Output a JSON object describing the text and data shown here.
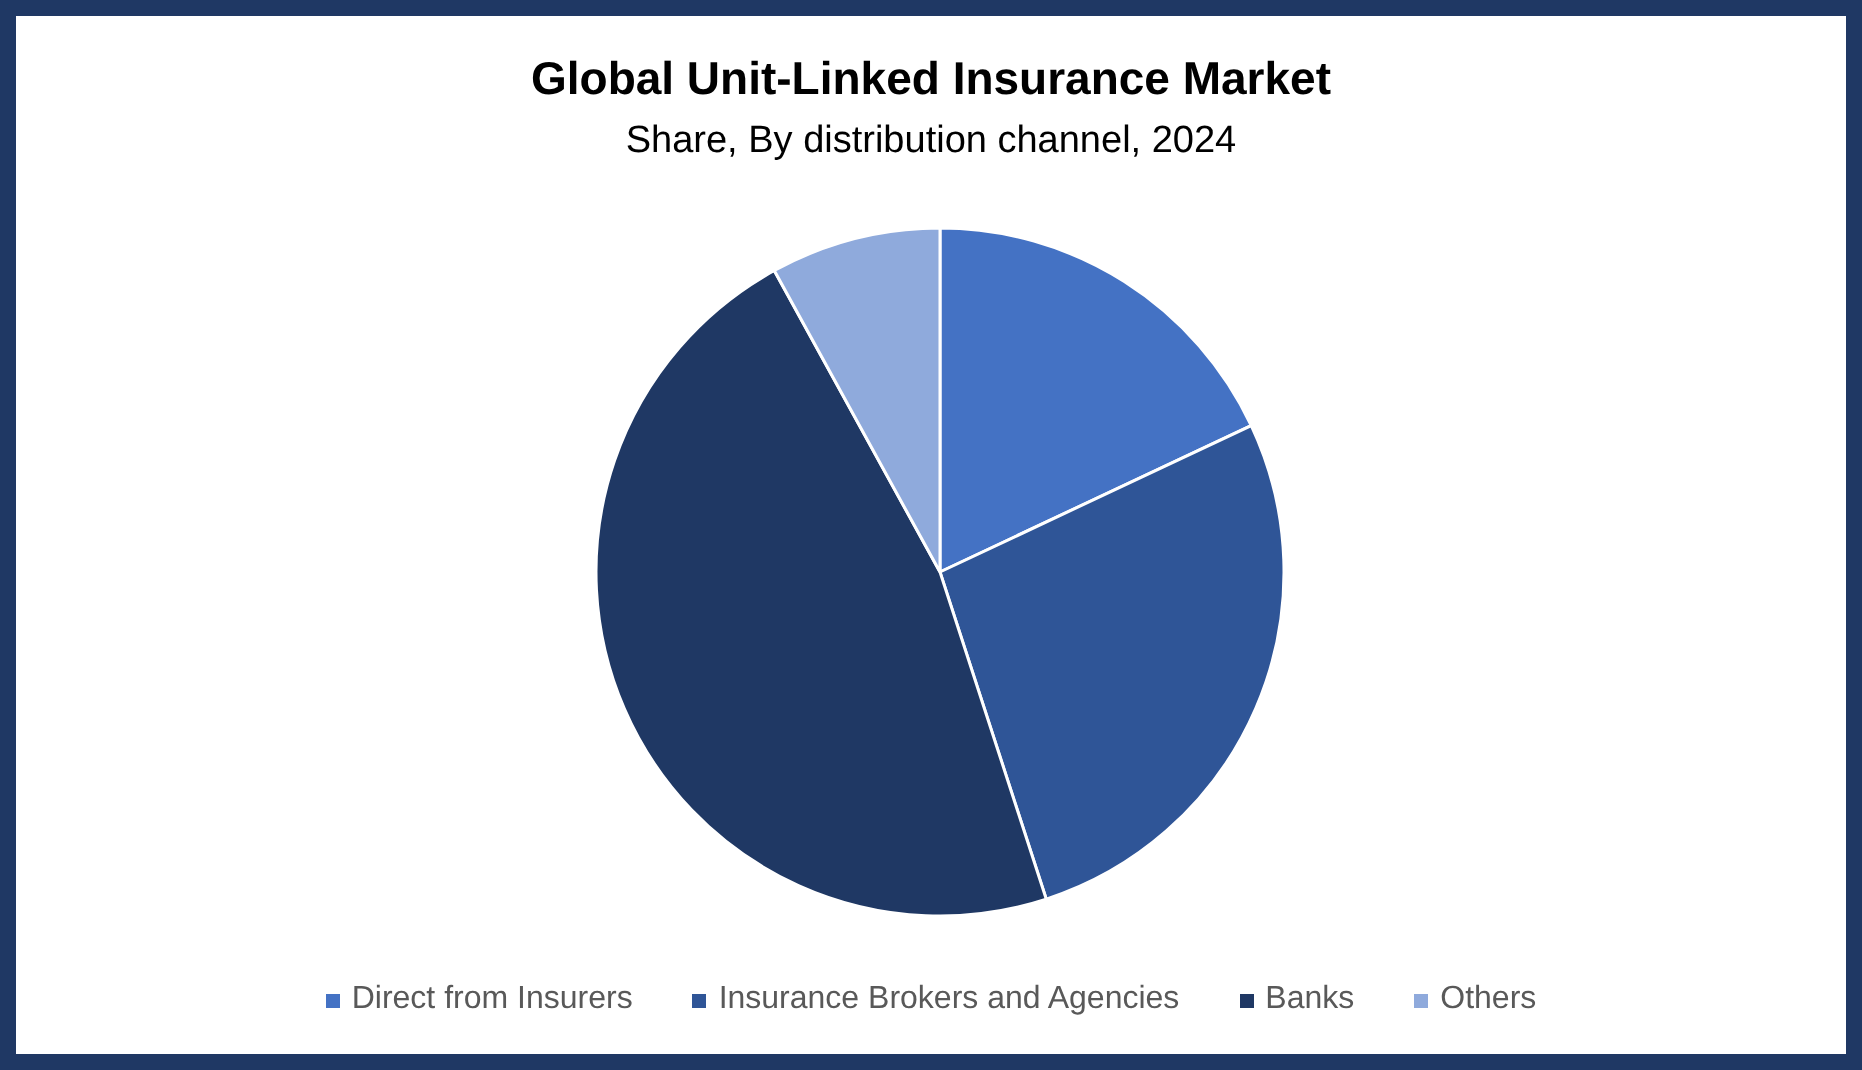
{
  "chart_data": {
    "type": "pie",
    "title": "Global Unit-Linked Insurance Market",
    "subtitle": "Share, By distribution channel, 2024",
    "categories": [
      "Direct from Insurers",
      "Insurance Brokers and Agencies",
      "Banks",
      "Others"
    ],
    "values": [
      18,
      27,
      47,
      8
    ],
    "colors": [
      "#4472c4",
      "#2f5597",
      "#1f3864",
      "#8faadc"
    ],
    "legend": "bottom"
  }
}
